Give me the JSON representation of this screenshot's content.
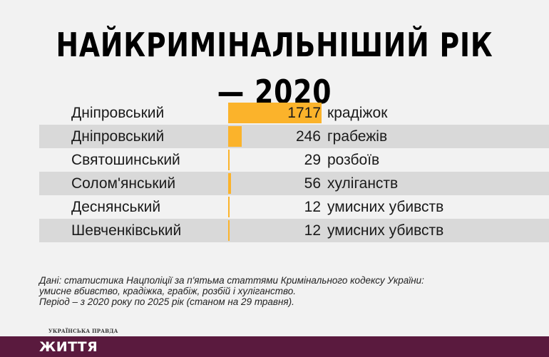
{
  "title": "НАЙКРИМІНАЛЬНІШИЙ РІК — 2020",
  "chart_data": {
    "type": "bar",
    "orientation": "horizontal",
    "title": "НАЙКРИМІНАЛЬНІШИЙ РІК — 2020",
    "max_value": 1717,
    "bar_color": "#fbb32b",
    "rows": [
      {
        "district": "Дніпровський",
        "value": 1717,
        "value_label": "1717",
        "crime": "крадіжок"
      },
      {
        "district": "Дніпровський",
        "value": 246,
        "value_label": "246",
        "crime": "грабежів"
      },
      {
        "district": "Святошинський",
        "value": 29,
        "value_label": "29",
        "crime": "розбоїв"
      },
      {
        "district": "Солом'янський",
        "value": 56,
        "value_label": "56",
        "crime": "хуліганств"
      },
      {
        "district": "Деснянський",
        "value": 12,
        "value_label": "12",
        "crime": "умисних убивств"
      },
      {
        "district": "Шевченківський",
        "value": 12,
        "value_label": "12",
        "crime": "умисних убивств"
      }
    ]
  },
  "note": {
    "line1": "Дані: статистика Нацполіції за п'ятьма статтями Кримінального кодексу України:",
    "line2": "умисне вбивство, крадіжка, грабіж, розбій і хуліганство.",
    "line3": "Період – з 2020 року по 2025 рік (станом на 29 травня)."
  },
  "brand": {
    "small": "УКРАЇНСЬКА ПРАВДА",
    "section": "ЖИТТЯ",
    "footer_color": "#5a1a3e"
  }
}
